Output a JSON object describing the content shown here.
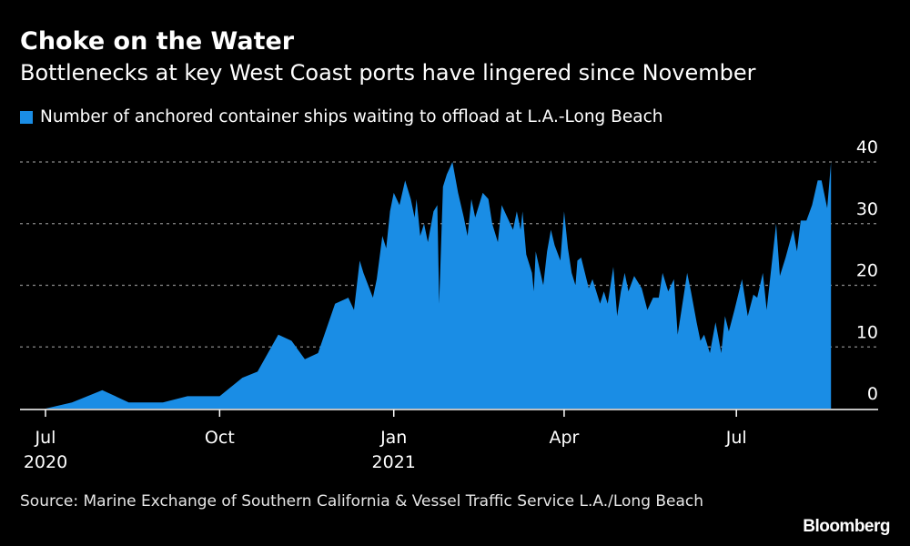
{
  "title": "Choke on the Water",
  "subtitle": "Bottlenecks at key West Coast ports have lingered since November",
  "source": "Source: Marine Exchange of Southern California & Vessel Traffic Service L.A./Long Beach",
  "logo": "Bloomberg",
  "colors": {
    "series": "#1a8de5",
    "background": "#000000",
    "grid": "#8a8a8a"
  },
  "chart_data": {
    "type": "area",
    "title": "Choke on the Water",
    "subtitle": "Bottlenecks at key West Coast ports have lingered since November",
    "ylim": [
      0,
      40
    ],
    "yticks": [
      0,
      10,
      20,
      30,
      40
    ],
    "xticks": [
      {
        "date": "2020-07-01",
        "label": "Jul",
        "year": "2020"
      },
      {
        "date": "2020-10-01",
        "label": "Oct",
        "year": ""
      },
      {
        "date": "2021-01-01",
        "label": "Jan",
        "year": "2021"
      },
      {
        "date": "2021-04-01",
        "label": "Apr",
        "year": ""
      },
      {
        "date": "2021-07-01",
        "label": "Jul",
        "year": ""
      }
    ],
    "grid": "horizontal dotted",
    "legend_position": "top-left",
    "y_axis_side": "right",
    "series": [
      {
        "name": "Number of anchored container ships waiting to offload at L.A.-Long Beach",
        "points": [
          [
            "2020-07-01",
            0
          ],
          [
            "2020-07-15",
            1
          ],
          [
            "2020-07-31",
            3
          ],
          [
            "2020-08-14",
            1
          ],
          [
            "2020-09-01",
            1
          ],
          [
            "2020-09-14",
            2
          ],
          [
            "2020-10-01",
            2
          ],
          [
            "2020-10-13",
            5
          ],
          [
            "2020-10-21",
            6
          ],
          [
            "2020-11-01",
            12
          ],
          [
            "2020-11-08",
            11
          ],
          [
            "2020-11-15",
            8
          ],
          [
            "2020-11-22",
            9
          ],
          [
            "2020-12-01",
            17
          ],
          [
            "2020-12-08",
            18
          ],
          [
            "2020-12-11",
            16
          ],
          [
            "2020-12-14",
            24
          ],
          [
            "2020-12-16",
            22
          ],
          [
            "2020-12-21",
            18
          ],
          [
            "2020-12-23",
            21
          ],
          [
            "2020-12-26",
            28
          ],
          [
            "2020-12-28",
            26
          ],
          [
            "2020-12-30",
            32
          ],
          [
            "2021-01-01",
            35
          ],
          [
            "2021-01-04",
            33
          ],
          [
            "2021-01-07",
            37
          ],
          [
            "2021-01-10",
            34
          ],
          [
            "2021-01-12",
            31
          ],
          [
            "2021-01-13",
            34
          ],
          [
            "2021-01-15",
            28
          ],
          [
            "2021-01-17",
            30
          ],
          [
            "2021-01-19",
            27
          ],
          [
            "2021-01-22",
            32
          ],
          [
            "2021-01-24",
            33
          ],
          [
            "2021-01-25",
            17
          ],
          [
            "2021-01-27",
            36
          ],
          [
            "2021-01-29",
            38
          ],
          [
            "2021-02-01",
            40
          ],
          [
            "2021-02-04",
            35
          ],
          [
            "2021-02-07",
            31
          ],
          [
            "2021-02-09",
            28
          ],
          [
            "2021-02-11",
            34
          ],
          [
            "2021-02-13",
            31
          ],
          [
            "2021-02-17",
            35
          ],
          [
            "2021-02-20",
            34
          ],
          [
            "2021-02-22",
            30
          ],
          [
            "2021-02-25",
            27
          ],
          [
            "2021-02-27",
            33
          ],
          [
            "2021-03-05",
            29
          ],
          [
            "2021-03-07",
            32
          ],
          [
            "2021-03-09",
            29
          ],
          [
            "2021-03-10",
            32
          ],
          [
            "2021-03-12",
            25
          ],
          [
            "2021-03-15",
            22
          ],
          [
            "2021-03-16",
            19
          ],
          [
            "2021-03-17",
            25.5
          ],
          [
            "2021-03-21",
            20
          ],
          [
            "2021-03-23",
            25.5
          ],
          [
            "2021-03-25",
            29
          ],
          [
            "2021-03-27",
            26.5
          ],
          [
            "2021-03-30",
            24
          ],
          [
            "2021-04-01",
            32
          ],
          [
            "2021-04-03",
            26
          ],
          [
            "2021-04-05",
            22
          ],
          [
            "2021-04-07",
            20
          ],
          [
            "2021-04-08",
            24
          ],
          [
            "2021-04-10",
            24.5
          ],
          [
            "2021-04-14",
            19.5
          ],
          [
            "2021-04-16",
            21
          ],
          [
            "2021-04-20",
            17
          ],
          [
            "2021-04-22",
            19
          ],
          [
            "2021-04-24",
            17
          ],
          [
            "2021-04-27",
            23
          ],
          [
            "2021-04-29",
            15
          ],
          [
            "2021-05-01",
            19
          ],
          [
            "2021-05-03",
            22
          ],
          [
            "2021-05-05",
            19
          ],
          [
            "2021-05-08",
            21.5
          ],
          [
            "2021-05-12",
            19.5
          ],
          [
            "2021-05-15",
            16
          ],
          [
            "2021-05-18",
            18
          ],
          [
            "2021-05-21",
            18
          ],
          [
            "2021-05-23",
            22
          ],
          [
            "2021-05-26",
            19
          ],
          [
            "2021-05-29",
            21
          ],
          [
            "2021-05-31",
            12
          ],
          [
            "2021-06-02",
            16
          ],
          [
            "2021-06-05",
            22
          ],
          [
            "2021-06-07",
            19
          ],
          [
            "2021-06-10",
            14
          ],
          [
            "2021-06-12",
            11
          ],
          [
            "2021-06-14",
            12
          ],
          [
            "2021-06-17",
            9
          ],
          [
            "2021-06-20",
            14
          ],
          [
            "2021-06-23",
            9
          ],
          [
            "2021-06-25",
            15
          ],
          [
            "2021-06-27",
            12.5
          ],
          [
            "2021-06-30",
            16
          ],
          [
            "2021-07-04",
            21
          ],
          [
            "2021-07-07",
            15
          ],
          [
            "2021-07-10",
            18.5
          ],
          [
            "2021-07-12",
            18
          ],
          [
            "2021-07-15",
            22
          ],
          [
            "2021-07-17",
            16
          ],
          [
            "2021-07-22",
            30
          ],
          [
            "2021-07-24",
            21.5
          ],
          [
            "2021-07-27",
            24.5
          ],
          [
            "2021-07-31",
            29
          ],
          [
            "2021-08-02",
            25.5
          ],
          [
            "2021-08-04",
            30.5
          ],
          [
            "2021-08-07",
            30.5
          ],
          [
            "2021-08-10",
            33
          ],
          [
            "2021-08-13",
            37
          ],
          [
            "2021-08-15",
            37
          ],
          [
            "2021-08-18",
            32.5
          ],
          [
            "2021-08-20",
            40
          ]
        ]
      }
    ]
  }
}
